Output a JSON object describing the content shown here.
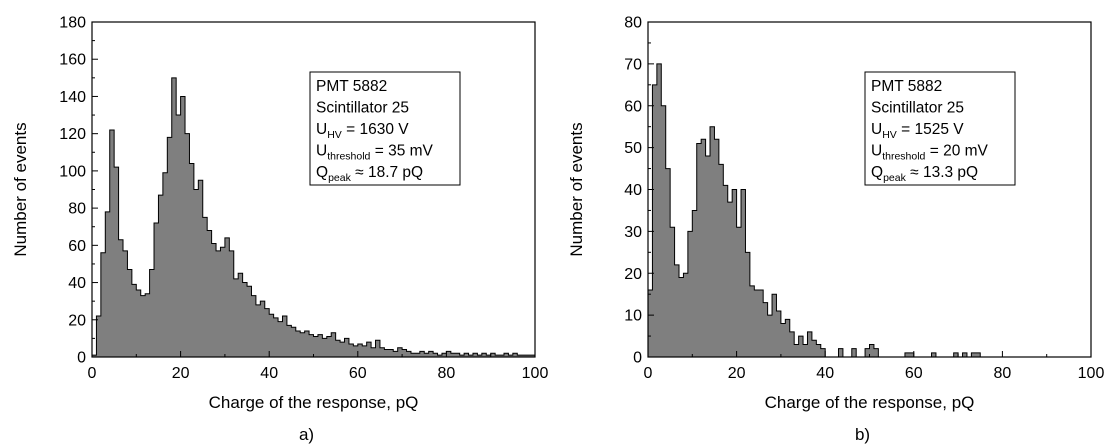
{
  "chart_data": [
    {
      "type": "histogram",
      "panel_label": "a)",
      "xlabel": "Charge of the response, pQ",
      "ylabel": "Number of events",
      "xlim": [
        0,
        100
      ],
      "ylim": [
        0,
        180
      ],
      "xticks": [
        0,
        20,
        40,
        60,
        80,
        100
      ],
      "yticks": [
        0,
        20,
        40,
        60,
        80,
        100,
        120,
        140,
        160,
        180
      ],
      "bin_width": 1,
      "bin_start": 0,
      "legend_box": {
        "lines": [
          {
            "main": "PMT 5882",
            "sub": "",
            "rest": ""
          },
          {
            "main": "Scintillator 25",
            "sub": "",
            "rest": ""
          },
          {
            "main": "U",
            "sub": "HV",
            "rest": " = 1630 V"
          },
          {
            "main": "U",
            "sub": "threshold",
            "rest": " = 35 mV"
          },
          {
            "main": "Q",
            "sub": "peak",
            "rest": " ≈ 18.7 pQ"
          }
        ]
      },
      "values": [
        1,
        22,
        56,
        78,
        122,
        102,
        63,
        57,
        47,
        39,
        36,
        33,
        34,
        47,
        72,
        87,
        99,
        118,
        150,
        130,
        140,
        120,
        104,
        90,
        95,
        75,
        68,
        61,
        57,
        59,
        64,
        57,
        42,
        45,
        40,
        38,
        33,
        28,
        30,
        26,
        23,
        21,
        19,
        22,
        17,
        16,
        14,
        13,
        14,
        12,
        11,
        12,
        10,
        11,
        13,
        9,
        8,
        10,
        7,
        6,
        7,
        6,
        8,
        5,
        9,
        5,
        4,
        4,
        3,
        5,
        4,
        3,
        2,
        2,
        3,
        2,
        3,
        2,
        1,
        2,
        3,
        2,
        2,
        1,
        2,
        1,
        2,
        1,
        2,
        1,
        2,
        1,
        1,
        2,
        1,
        2,
        1,
        1,
        1,
        1
      ]
    },
    {
      "type": "histogram",
      "panel_label": "b)",
      "xlabel": "Charge of the response, pQ",
      "ylabel": "Number of events",
      "xlim": [
        0,
        100
      ],
      "ylim": [
        0,
        80
      ],
      "xticks": [
        0,
        20,
        40,
        60,
        80,
        100
      ],
      "yticks": [
        0,
        10,
        20,
        30,
        40,
        50,
        60,
        70,
        80
      ],
      "bin_width": 1,
      "bin_start": 0,
      "legend_box": {
        "lines": [
          {
            "main": "PMT 5882",
            "sub": "",
            "rest": ""
          },
          {
            "main": "Scintillator 25",
            "sub": "",
            "rest": ""
          },
          {
            "main": "U",
            "sub": "HV",
            "rest": " = 1525 V"
          },
          {
            "main": "U",
            "sub": "threshold",
            "rest": " = 20 mV"
          },
          {
            "main": "Q",
            "sub": "peak",
            "rest": " ≈ 13.3 pQ"
          }
        ]
      },
      "values": [
        16,
        65,
        70,
        60,
        45,
        31,
        22,
        19,
        20,
        30,
        35,
        51,
        52,
        48,
        55,
        52,
        46,
        41,
        37,
        40,
        31,
        40,
        25,
        17,
        16,
        16,
        13,
        10,
        15,
        11,
        8,
        9,
        6,
        3,
        5,
        3,
        6,
        4,
        3,
        2,
        0,
        0,
        0,
        2,
        0,
        0,
        2,
        0,
        0,
        2,
        3,
        2,
        0,
        0,
        0,
        0,
        0,
        0,
        1,
        1,
        0,
        0,
        0,
        0,
        1,
        0,
        0,
        0,
        0,
        1,
        0,
        1,
        0,
        1,
        1,
        0,
        0,
        0,
        0,
        0,
        0,
        0,
        0,
        0,
        0,
        0,
        0,
        0,
        0,
        0,
        0,
        0,
        0,
        0,
        0,
        0,
        0,
        0,
        0,
        0
      ]
    }
  ]
}
